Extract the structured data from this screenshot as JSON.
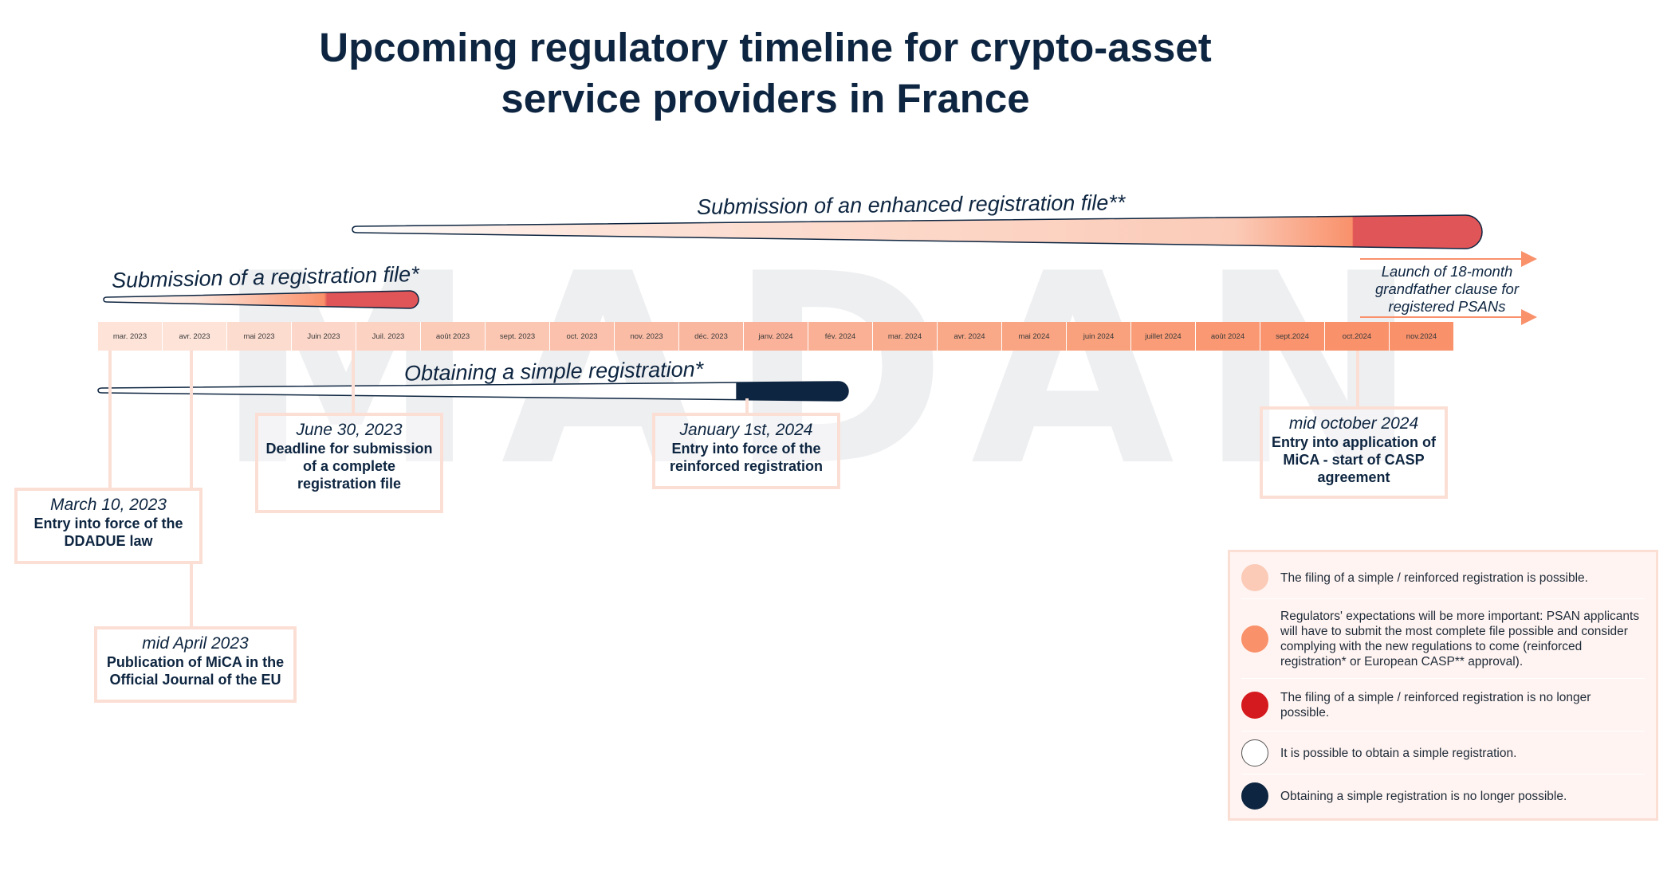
{
  "title": {
    "line1": "Upcoming regulatory timeline for crypto-asset",
    "line2": "service providers in France"
  },
  "watermark": "MADAN",
  "bars": {
    "enhanced": "Submission of an enhanced registration file**",
    "registration": "Submission of a registration file*",
    "simple": "Obtaining a simple registration*"
  },
  "months": [
    "mar. 2023",
    "avr. 2023",
    "mai 2023",
    "Juin 2023",
    "Juil. 2023",
    "août 2023",
    "sept. 2023",
    "oct. 2023",
    "nov. 2023",
    "déc. 2023",
    "janv. 2024",
    "fév. 2024",
    "mar. 2024",
    "avr. 2024",
    "mai 2024",
    "juin 2024",
    "juillet 2024",
    "août 2024",
    "sept.2024",
    "oct.2024",
    "nov.2024"
  ],
  "grandfather": "Launch of 18-month grandfather clause for registered PSANs",
  "events": [
    {
      "date": "March 10, 2023",
      "desc": "Entry into force of the DDADUE law"
    },
    {
      "date": "mid April 2023",
      "desc": "Publication of MiCA in the Official Journal of the EU"
    },
    {
      "date": "June 30, 2023",
      "desc": "Deadline for submission of a complete registration file"
    },
    {
      "date": "January 1st, 2024",
      "desc": "Entry into force of the reinforced registration"
    },
    {
      "date": "mid october 2024",
      "desc": "Entry into application of MiCA - start of CASP agreement"
    }
  ],
  "legend": [
    {
      "color": "#fbcbb8",
      "border": "#fbcbb8",
      "text": "The filing of a simple / reinforced registration is possible."
    },
    {
      "color": "#f9916b",
      "border": "#f9916b",
      "text": "Regulators' expectations will be more important: PSAN applicants will have to submit the most complete file possible and consider complying with the new regulations to come (reinforced registration* or European CASP** approval)."
    },
    {
      "color": "#d51a1f",
      "border": "#d51a1f",
      "text": "The filing of a simple / reinforced registration is no longer possible."
    },
    {
      "color": "#ffffff",
      "border": "#555555",
      "text": "It is possible to obtain a simple registration."
    },
    {
      "color": "#0d2540",
      "border": "#0d2540",
      "text": "Obtaining a simple registration is no longer possible."
    }
  ],
  "colors": {
    "navy": "#0d2540",
    "peach": "#fbcbb8",
    "orange": "#f9916b",
    "red": "#e05557",
    "box_border": "#fbdfd5"
  }
}
